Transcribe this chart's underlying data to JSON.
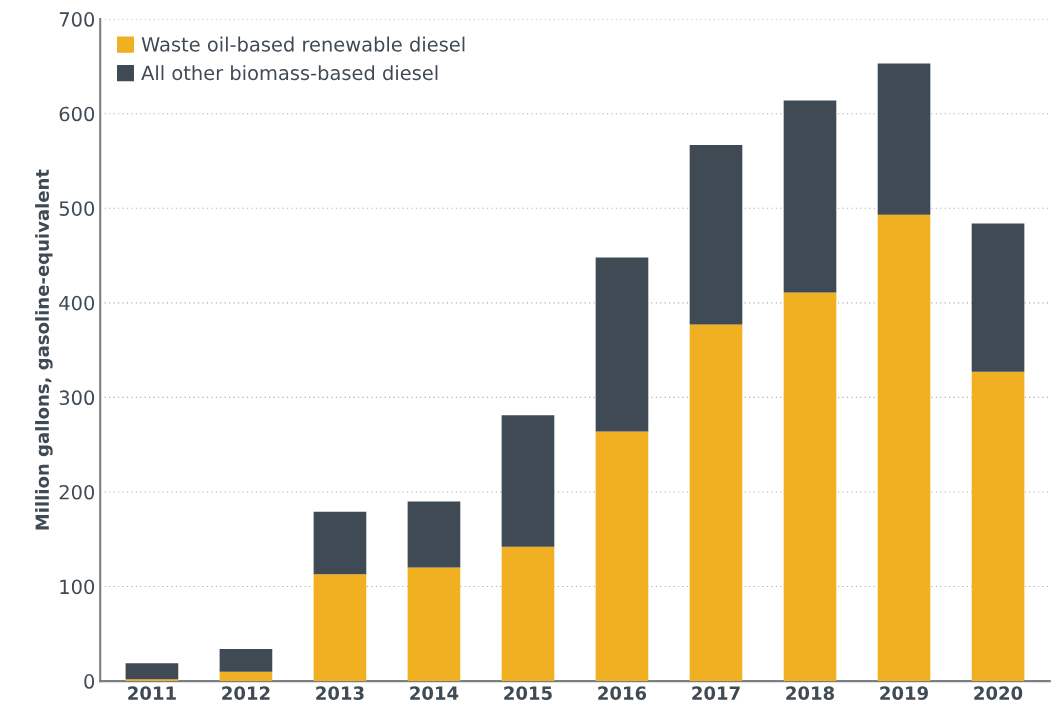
{
  "chart_data": {
    "type": "bar",
    "stacked": true,
    "ylabel": "Million gallons, gasoline-equivalent",
    "categories": [
      "2011",
      "2012",
      "2013",
      "2014",
      "2015",
      "2016",
      "2017",
      "2018",
      "2019",
      "2020"
    ],
    "series": [
      {
        "name": "Waste oil-based renewable diesel",
        "color": "#f0b021",
        "values": [
          2,
          10,
          113,
          120,
          142,
          264,
          377,
          411,
          493,
          327
        ]
      },
      {
        "name": "All other biomass-based diesel",
        "color": "#3f4a54",
        "values": [
          17,
          24,
          66,
          70,
          139,
          184,
          190,
          203,
          160,
          157
        ]
      }
    ],
    "ylim": [
      0,
      700
    ],
    "yticks": [
      0,
      100,
      200,
      300,
      400,
      500,
      600,
      700
    ],
    "grid": "y",
    "legend": "top left"
  }
}
